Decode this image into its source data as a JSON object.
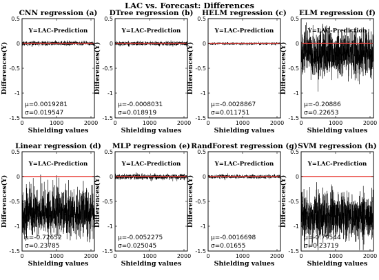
{
  "figure": {
    "title": "LAC vs. Forecast: Differences"
  },
  "chart_data": [
    {
      "type": "line",
      "title": "CNN regression (a)",
      "xlabel": "Shielding values",
      "ylabel": "Differences(Y)",
      "annotation": "Y=LAC-Prediction",
      "xlim": [
        0,
        2100
      ],
      "ylim": [
        -1.5,
        0.5
      ],
      "xticks": [
        "0",
        "1000",
        "2000"
      ],
      "yticks": [
        "-1.5",
        "-1",
        "-0.5",
        "0",
        "0.5"
      ],
      "zero_line_color": "#e8403a",
      "series_color": "#000000",
      "stats": {
        "mu_label": "μ=0.0019281",
        "sigma_label": "σ=0.019547"
      },
      "noise": {
        "mean": 0.0019281,
        "std": 0.019547,
        "points": 2100
      }
    },
    {
      "type": "line",
      "title": "DTree regression (b)",
      "xlabel": "Shielding values",
      "ylabel": "Differences(Y)",
      "annotation": "Y=LAC-Prediction",
      "xlim": [
        0,
        2100
      ],
      "ylim": [
        -1.5,
        0.5
      ],
      "xticks": [
        "0",
        "1000",
        "2000"
      ],
      "yticks": [
        "-1.5",
        "-1",
        "-0.5",
        "0",
        "0.5"
      ],
      "zero_line_color": "#e8403a",
      "series_color": "#000000",
      "stats": {
        "mu_label": "μ=-0.0008031",
        "sigma_label": "σ=0.018919"
      },
      "noise": {
        "mean": -0.0008031,
        "std": 0.018919,
        "points": 2100
      }
    },
    {
      "type": "line",
      "title": "HELM regression (c)",
      "xlabel": "Shielding values",
      "ylabel": "Differences(Y)",
      "annotation": "Y=LAC-Prediction",
      "xlim": [
        0,
        2100
      ],
      "ylim": [
        -1.5,
        0.5
      ],
      "xticks": [
        "0",
        "1000",
        "2000"
      ],
      "yticks": [
        "-1.5",
        "-1",
        "-0.5",
        "0",
        "0.5"
      ],
      "zero_line_color": "#e8403a",
      "series_color": "#000000",
      "stats": {
        "mu_label": "μ=-0.0028867",
        "sigma_label": "σ=0.011751"
      },
      "noise": {
        "mean": -0.0028867,
        "std": 0.011751,
        "points": 2100
      }
    },
    {
      "type": "line",
      "title": "ELM regression (f)",
      "xlabel": "Shielding values",
      "ylabel": "Differences(Y)",
      "annotation": "Y=LAC-Prediction",
      "xlim": [
        0,
        2100
      ],
      "ylim": [
        -1.5,
        0.5
      ],
      "xticks": [
        "0",
        "1000",
        "2000"
      ],
      "yticks": [
        "-1.5",
        "-1",
        "-0.5",
        "0",
        "0.5"
      ],
      "zero_line_color": "#e8403a",
      "series_color": "#000000",
      "stats": {
        "mu_label": "μ=-0.20886",
        "sigma_label": "σ=0.22653"
      },
      "noise": {
        "mean": -0.20886,
        "std": 0.22653,
        "points": 2100
      }
    },
    {
      "type": "line",
      "title": "Linear regression (d)",
      "xlabel": "Shielding values",
      "ylabel": "Differences(Y)",
      "annotation": "Y=LAC-Prediction",
      "xlim": [
        0,
        2100
      ],
      "ylim": [
        -1.5,
        0.5
      ],
      "xticks": [
        "0",
        "1000",
        "2000"
      ],
      "yticks": [
        "-1.5",
        "-1",
        "-0.5",
        "0",
        "0.5"
      ],
      "zero_line_color": "#e8403a",
      "series_color": "#000000",
      "stats": {
        "mu_label": "μ=-0.72652",
        "sigma_label": "σ=0.23785"
      },
      "noise": {
        "mean": -0.72652,
        "std": 0.23785,
        "points": 2100
      }
    },
    {
      "type": "line",
      "title": "MLP regression (e)",
      "xlabel": "Shielding values",
      "ylabel": "Differences(Y)",
      "annotation": "Y=LAC-Prediction",
      "xlim": [
        0,
        2100
      ],
      "ylim": [
        -1.5,
        0.5
      ],
      "xticks": [
        "0",
        "1000",
        "2000"
      ],
      "yticks": [
        "-1.5",
        "-1",
        "-0.5",
        "0",
        "0.5"
      ],
      "zero_line_color": "#e8403a",
      "series_color": "#000000",
      "stats": {
        "mu_label": "μ=-0.0052275",
        "sigma_label": "σ=0.025045"
      },
      "noise": {
        "mean": -0.0052275,
        "std": 0.025045,
        "points": 2100
      }
    },
    {
      "type": "line",
      "title": "RandForest regression (g)",
      "xlabel": "Shielding values",
      "ylabel": "Differences(Y)",
      "annotation": "Y=LAC-Prediction",
      "xlim": [
        0,
        2100
      ],
      "ylim": [
        -1.5,
        0.5
      ],
      "xticks": [
        "0",
        "1000",
        "2000"
      ],
      "yticks": [
        "-1.5",
        "-1",
        "-0.5",
        "0",
        "0.5"
      ],
      "zero_line_color": "#e8403a",
      "series_color": "#000000",
      "stats": {
        "mu_label": "μ=-0.0016698",
        "sigma_label": "σ=0.01655"
      },
      "noise": {
        "mean": -0.0016698,
        "std": 0.01655,
        "points": 2100
      }
    },
    {
      "type": "line",
      "title": "SVM regression (h)",
      "xlabel": "Shielding values",
      "ylabel": "Differences(Y)",
      "annotation": "Y=LAC-Prediction",
      "xlim": [
        0,
        2100
      ],
      "ylim": [
        -1.5,
        0.5
      ],
      "xticks": [
        "0",
        "1000",
        "2000"
      ],
      "yticks": [
        "-1.5",
        "-1",
        "-0.5",
        "0",
        "0.5"
      ],
      "zero_line_color": "#e8403a",
      "series_color": "#000000",
      "stats": {
        "mu_label": "μ=-0.79544",
        "sigma_label": "σ=0.23719"
      },
      "noise": {
        "mean": -0.79544,
        "std": 0.23719,
        "points": 2100
      }
    }
  ]
}
